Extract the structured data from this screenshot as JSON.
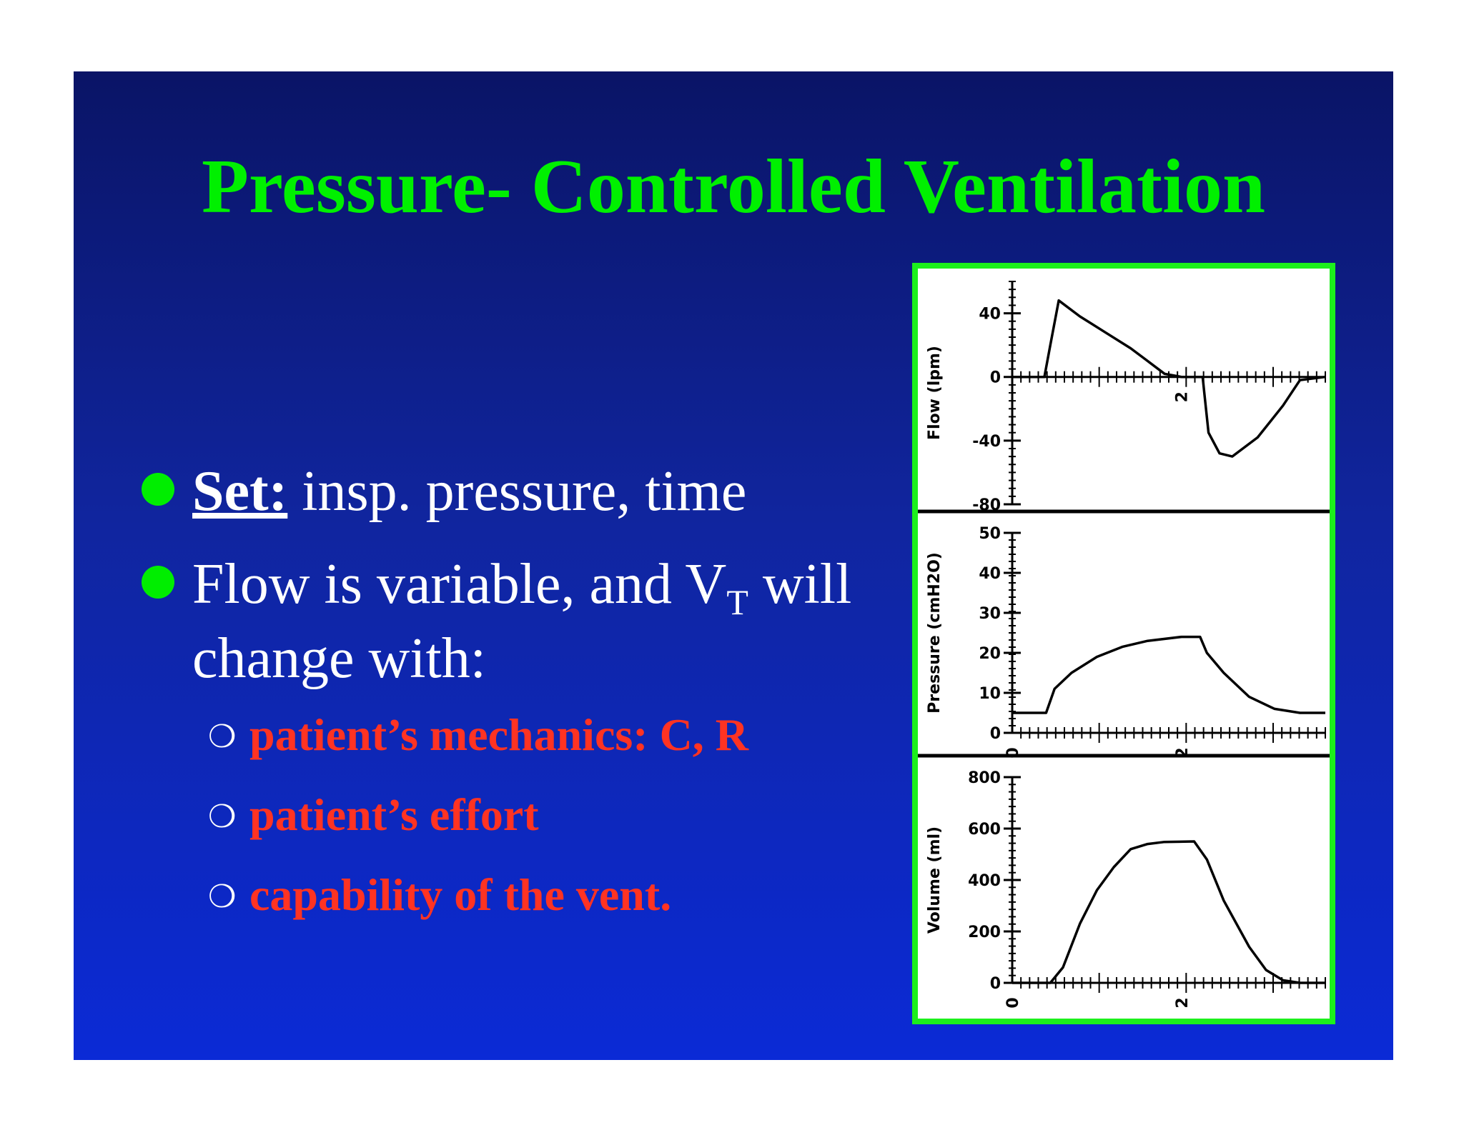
{
  "slide": {
    "title": "Pressure- Controlled Ventilation",
    "bullets": [
      {
        "label": "Set:",
        "text": " insp. pressure, time"
      },
      {
        "text_pre": "Flow is variable, and V",
        "subscript": "T",
        "text_post": " will",
        "line2": "change with:"
      }
    ],
    "subbullets": [
      "patient’s mechanics: C, R",
      "patient’s effort",
      "capability of the vent."
    ],
    "colors": {
      "title": "#00f000",
      "subbullets": "#ff3322",
      "bullet_dot": "#00ee00",
      "frame": "#1cf01c"
    }
  },
  "chart_data": [
    {
      "type": "line",
      "ylabel": "Flow (lpm)",
      "y_ticks": [
        "40",
        "0",
        "-40",
        "-80"
      ],
      "x_ticks": [
        "2"
      ],
      "ylim": [
        -80,
        60
      ],
      "xlim": [
        0,
        3.7
      ],
      "points": [
        [
          0,
          0
        ],
        [
          0.38,
          0
        ],
        [
          0.45,
          20
        ],
        [
          0.55,
          48
        ],
        [
          0.8,
          38
        ],
        [
          1.1,
          28
        ],
        [
          1.4,
          18
        ],
        [
          1.6,
          10
        ],
        [
          1.8,
          2
        ],
        [
          2.0,
          0
        ],
        [
          2.25,
          0
        ],
        [
          2.27,
          -10
        ],
        [
          2.32,
          -35
        ],
        [
          2.45,
          -48
        ],
        [
          2.6,
          -50
        ],
        [
          2.9,
          -38
        ],
        [
          3.2,
          -18
        ],
        [
          3.4,
          -2
        ],
        [
          3.7,
          0
        ]
      ]
    },
    {
      "type": "line",
      "ylabel": "Pressure (cmH2O)",
      "y_ticks": [
        "50",
        "40",
        "30",
        "20",
        "10",
        "0"
      ],
      "x_ticks": [
        "0",
        "2"
      ],
      "ylim": [
        0,
        50
      ],
      "xlim": [
        0,
        3.7
      ],
      "points": [
        [
          0,
          5
        ],
        [
          0.4,
          5
        ],
        [
          0.5,
          11
        ],
        [
          0.7,
          15
        ],
        [
          1.0,
          19
        ],
        [
          1.3,
          21.5
        ],
        [
          1.6,
          23
        ],
        [
          2.0,
          24
        ],
        [
          2.22,
          24
        ],
        [
          2.3,
          20
        ],
        [
          2.5,
          15
        ],
        [
          2.8,
          9
        ],
        [
          3.1,
          6
        ],
        [
          3.4,
          5
        ],
        [
          3.7,
          5
        ]
      ]
    },
    {
      "type": "line",
      "ylabel": "Volume (ml)",
      "y_ticks": [
        "800",
        "600",
        "400",
        "200",
        "0"
      ],
      "x_ticks": [
        "0",
        "2"
      ],
      "ylim": [
        0,
        800
      ],
      "xlim": [
        0,
        3.7
      ],
      "points": [
        [
          0,
          0
        ],
        [
          0.45,
          0
        ],
        [
          0.6,
          60
        ],
        [
          0.8,
          230
        ],
        [
          1.0,
          360
        ],
        [
          1.2,
          450
        ],
        [
          1.4,
          520
        ],
        [
          1.6,
          540
        ],
        [
          1.8,
          548
        ],
        [
          2.15,
          550
        ],
        [
          2.3,
          480
        ],
        [
          2.5,
          320
        ],
        [
          2.8,
          140
        ],
        [
          3.0,
          50
        ],
        [
          3.2,
          10
        ],
        [
          3.4,
          0
        ],
        [
          3.7,
          0
        ]
      ]
    }
  ]
}
